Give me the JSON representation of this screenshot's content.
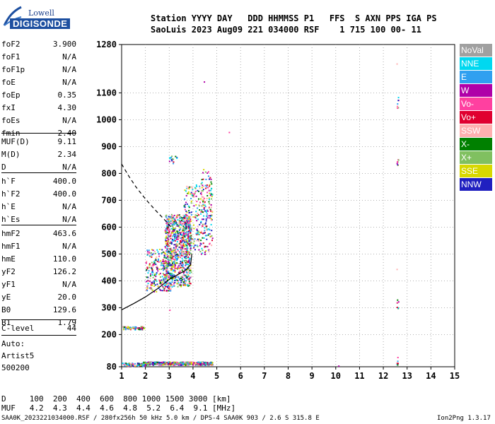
{
  "logo": {
    "line1": "Lowell",
    "line2": "DIGISONDE"
  },
  "header": {
    "row1": "Station YYYY DAY   DDD HHMMSS P1   FFS  S AXN PPS IGA PS",
    "row2": "SaoLuis 2023 Aug09 221 034000 RSF    1 715 100 00- 11"
  },
  "params": [
    {
      "k": "foF2",
      "v": "3.900"
    },
    {
      "k": "foF1",
      "v": "N/A"
    },
    {
      "k": "foF1p",
      "v": "N/A"
    },
    {
      "k": "foE",
      "v": "N/A"
    },
    {
      "k": "foEp",
      "v": "0.35"
    },
    {
      "k": "fxI",
      "v": "4.30"
    },
    {
      "k": "foEs",
      "v": "N/A"
    },
    {
      "k": "fmin",
      "v": "2.40"
    },
    {
      "k": "MUF(D)",
      "v": "9.11"
    },
    {
      "k": "M(D)",
      "v": "2.34"
    },
    {
      "k": "D",
      "v": "N/A"
    },
    {
      "k": "h`F",
      "v": "400.0"
    },
    {
      "k": "h`F2",
      "v": "400.0"
    },
    {
      "k": "h`E",
      "v": "N/A"
    },
    {
      "k": "h`Es",
      "v": "N/A"
    },
    {
      "k": "hmF2",
      "v": "463.6"
    },
    {
      "k": "hmF1",
      "v": "N/A"
    },
    {
      "k": "hmE",
      "v": "110.0"
    },
    {
      "k": "yF2",
      "v": "126.2"
    },
    {
      "k": "yF1",
      "v": "N/A"
    },
    {
      "k": "yE",
      "v": "20.0"
    },
    {
      "k": "B0",
      "v": "129.6"
    },
    {
      "k": "B1",
      "v": "1.79"
    },
    {
      "k": "C-level",
      "v": "44"
    }
  ],
  "auto": {
    "label": "Auto:",
    "artist": "Artist5",
    "version": "500200"
  },
  "legend": [
    {
      "label": "NoVal",
      "color": "#a0a0a0"
    },
    {
      "label": "NNE",
      "color": "#00d8f0"
    },
    {
      "label": "E",
      "color": "#30a0f0"
    },
    {
      "label": "W",
      "color": "#b000a8"
    },
    {
      "label": "Vo-",
      "color": "#ff40a0"
    },
    {
      "label": "Vo+",
      "color": "#e00030"
    },
    {
      "label": "SSW",
      "color": "#ffb0b0"
    },
    {
      "label": "X-",
      "color": "#008000"
    },
    {
      "label": "X+",
      "color": "#80c060"
    },
    {
      "label": "SSE",
      "color": "#d8d800"
    },
    {
      "label": "NNW",
      "color": "#2020c0"
    }
  ],
  "muf_table": {
    "d_row": "D     100  200  400  600  800 1000 1500 3000 [km]",
    "muf_row": "MUF   4.2  4.3  4.4  4.6  4.8  5.2  6.4  9.1 [MHz]"
  },
  "footer": {
    "left": "SAA0K_2023221034000.RSF / 280fx256h 50 kHz 5.0 km / DPS-4 SAA0K 903 / 2.6 S 315.8 E",
    "right": "Ion2Png 1.3.17"
  },
  "chart_data": {
    "type": "scatter",
    "xlabel": "",
    "ylabel": "",
    "xlim": [
      1,
      15
    ],
    "ylim": [
      80,
      1280
    ],
    "xticks": [
      1,
      2,
      3,
      4,
      5,
      6,
      7,
      8,
      9,
      10,
      11,
      12,
      13,
      14,
      15
    ],
    "yticks": [
      80,
      200,
      300,
      400,
      500,
      600,
      700,
      800,
      900,
      1000,
      1100,
      1280
    ],
    "traces": [
      {
        "name": "O-trace",
        "style": "dashed",
        "x": [
          1.0,
          1.3,
          1.6,
          2.0,
          2.4,
          2.8,
          3.1
        ],
        "y": [
          835,
          790,
          750,
          705,
          665,
          628,
          598
        ]
      },
      {
        "name": "profile",
        "style": "solid",
        "x": [
          1.0,
          1.5,
          2.0,
          2.5,
          3.0,
          3.4,
          3.7,
          3.9,
          3.95
        ],
        "y": [
          292,
          315,
          340,
          370,
          405,
          425,
          440,
          460,
          500
        ]
      }
    ],
    "echo_clusters": [
      {
        "xr": [
          2.8,
          3.9
        ],
        "yr": [
          380,
          650
        ],
        "n": 900
      },
      {
        "xr": [
          3.6,
          4.8
        ],
        "yr": [
          500,
          760
        ],
        "n": 260
      },
      {
        "xr": [
          2.0,
          3.1
        ],
        "yr": [
          360,
          520
        ],
        "n": 260
      },
      {
        "xr": [
          4.3,
          4.8
        ],
        "yr": [
          580,
          820
        ],
        "n": 60
      },
      {
        "xr": [
          1.9,
          4.8
        ],
        "yr": [
          88,
          100
        ],
        "n": 520
      },
      {
        "xr": [
          1.0,
          2.0
        ],
        "yr": [
          84,
          96
        ],
        "n": 90
      },
      {
        "xr": [
          1.0,
          1.95
        ],
        "yr": [
          220,
          232
        ],
        "n": 60
      },
      {
        "xr": [
          2.95,
          3.3
        ],
        "yr": [
          838,
          870
        ],
        "n": 14
      },
      {
        "xr": [
          12.55,
          12.62
        ],
        "yr": [
          1040,
          1100
        ],
        "n": 8
      },
      {
        "xr": [
          12.55,
          12.62
        ],
        "yr": [
          825,
          865
        ],
        "n": 8
      },
      {
        "xr": [
          12.55,
          12.62
        ],
        "yr": [
          300,
          350
        ],
        "n": 8
      },
      {
        "xr": [
          12.55,
          12.62
        ],
        "yr": [
          85,
          120
        ],
        "n": 6
      }
    ],
    "isolated_points": [
      {
        "x": 4.45,
        "y": 1143,
        "c": "#b000a8"
      },
      {
        "x": 5.5,
        "y": 955,
        "c": "#ff40a0"
      },
      {
        "x": 3.0,
        "y": 293,
        "c": "#ff40a0"
      },
      {
        "x": 10.1,
        "y": 85,
        "c": "#b000a8"
      },
      {
        "x": 12.55,
        "y": 1210,
        "c": "#ffb0b0"
      },
      {
        "x": 12.55,
        "y": 445,
        "c": "#ffb0b0"
      }
    ]
  }
}
